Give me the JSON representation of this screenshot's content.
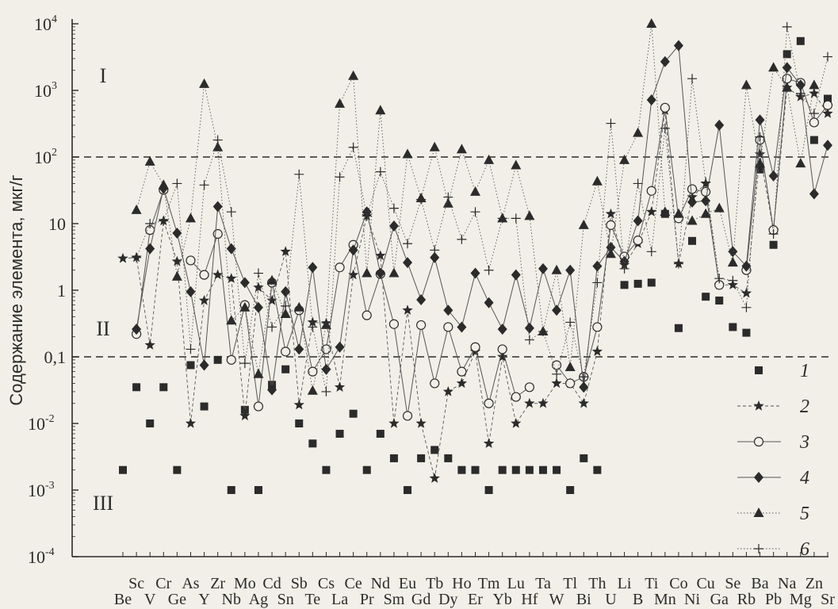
{
  "chart_data": {
    "type": "line",
    "ylabel": "Содержание элемента, мкг/г",
    "yscale": "log",
    "ylim": [
      0.0001,
      10000
    ],
    "yticks": [
      {
        "value": 10000,
        "base": "10",
        "exp": "4"
      },
      {
        "value": 1000,
        "base": "10",
        "exp": "3"
      },
      {
        "value": 100,
        "base": "10",
        "exp": "2"
      },
      {
        "value": 10,
        "base": "10",
        "exp": ""
      },
      {
        "value": 1,
        "base": "1",
        "exp": ""
      },
      {
        "value": 0.1,
        "base": "0,1",
        "exp": ""
      },
      {
        "value": 0.01,
        "base": "10",
        "exp": "-2"
      },
      {
        "value": 0.001,
        "base": "10",
        "exp": "-3"
      },
      {
        "value": 0.0001,
        "base": "10",
        "exp": "-4"
      }
    ],
    "categories": [
      "Be",
      "Sc",
      "V",
      "Cr",
      "Ge",
      "As",
      "Y",
      "Zr",
      "Nb",
      "Mo",
      "Ag",
      "Cd",
      "Sn",
      "Sb",
      "Te",
      "Cs",
      "La",
      "Ce",
      "Pr",
      "Nd",
      "Sm",
      "Eu",
      "Gd",
      "Tb",
      "Dy",
      "Ho",
      "Er",
      "Tm",
      "Yb",
      "Lu",
      "Hf",
      "Ta",
      "W",
      "Tl",
      "Bi",
      "Th",
      "U",
      "Li",
      "B",
      "Ti",
      "Mn",
      "Co",
      "Ni",
      "Cu",
      "Ga",
      "Se",
      "Rb",
      "Ba",
      "Pb",
      "Na",
      "Mg",
      "Zn",
      "Sr"
    ],
    "reference_lines": [
      100,
      0.1
    ],
    "zones": [
      "I",
      "II",
      "III"
    ],
    "series": [
      {
        "name": "1",
        "marker": "square",
        "line": "none",
        "values": [
          0.002,
          0.035,
          0.01,
          0.035,
          0.002,
          0.075,
          0.018,
          0.09,
          0.001,
          0.016,
          0.001,
          0.038,
          0.065,
          0.01,
          0.005,
          0.002,
          0.007,
          0.014,
          0.002,
          0.007,
          0.003,
          0.001,
          0.003,
          0.004,
          0.003,
          0.002,
          0.002,
          0.001,
          0.002,
          0.002,
          0.002,
          0.002,
          0.002,
          0.001,
          0.003,
          0.002,
          null,
          1.2,
          1.25,
          1.3,
          14,
          0.27,
          5.5,
          0.8,
          0.7,
          0.28,
          0.23,
          65,
          4.8,
          3500,
          5500,
          180,
          750
        ]
      },
      {
        "name": "2",
        "marker": "star",
        "line": "dashed",
        "values": [
          3,
          3.1,
          0.15,
          11,
          2.7,
          0.01,
          0.7,
          1.7,
          1.5,
          0.013,
          1.1,
          0.7,
          3.8,
          0.019,
          0.33,
          0.32,
          0.035,
          1.7,
          13,
          3.3,
          0.01,
          0.5,
          0.01,
          0.0015,
          0.03,
          0.04,
          0.12,
          0.005,
          0.1,
          0.01,
          0.02,
          0.02,
          0.04,
          0.04,
          0.02,
          0.12,
          14,
          2.4,
          5,
          15,
          500,
          2.5,
          25,
          40,
          1.2,
          1.2,
          0.9,
          110,
          8,
          1100,
          800,
          900,
          450
        ]
      },
      {
        "name": "3",
        "marker": "circle",
        "line": "solid",
        "values": [
          null,
          0.22,
          8,
          32,
          null,
          2.8,
          1.7,
          7,
          0.09,
          0.6,
          0.018,
          1.3,
          0.12,
          0.5,
          0.06,
          0.13,
          2.2,
          4.8,
          0.42,
          1.75,
          0.31,
          0.013,
          0.3,
          0.04,
          0.28,
          0.06,
          0.14,
          0.02,
          0.13,
          0.025,
          0.035,
          null,
          0.075,
          0.04,
          0.05,
          0.28,
          9.5,
          3.2,
          5.6,
          31,
          550,
          12,
          33,
          30,
          1.2,
          null,
          2,
          180,
          8,
          1500,
          1300,
          330,
          600
        ]
      },
      {
        "name": "4",
        "marker": "diamond",
        "line": "solid",
        "values": [
          null,
          0.26,
          4.2,
          34,
          7.2,
          0.95,
          0.075,
          18,
          4.2,
          1.3,
          0.55,
          0.032,
          0.95,
          0.13,
          2.2,
          0.065,
          0.14,
          4,
          15,
          1.8,
          9.2,
          2.6,
          0.72,
          3.1,
          0.5,
          0.28,
          1.8,
          0.65,
          0.26,
          1.7,
          0.27,
          2.1,
          0.5,
          2,
          0.035,
          2.3,
          4.4,
          2.7,
          11,
          720,
          2700,
          4700,
          21,
          22,
          300,
          3.8,
          2.3,
          360,
          52,
          2200,
          1200,
          28,
          150
        ]
      },
      {
        "name": "5",
        "marker": "triangle",
        "line": "dotted",
        "values": [
          null,
          16,
          85,
          38,
          1.6,
          12,
          1250,
          140,
          0.35,
          0.55,
          0.055,
          1.4,
          0.44,
          0.55,
          0.031,
          0.3,
          630,
          1650,
          1.8,
          500,
          1.8,
          110,
          24,
          140,
          20,
          130,
          30,
          90,
          12,
          75,
          13,
          0.24,
          2,
          0.07,
          9.5,
          43,
          3.5,
          90,
          230,
          10000,
          15,
          14,
          11,
          14,
          17,
          2.6,
          1200,
          80,
          2200,
          1100,
          80,
          1200,
          null
        ]
      },
      {
        "name": "6",
        "marker": "plus",
        "line": "dotted",
        "values": [
          null,
          3.1,
          10,
          11,
          40,
          0.13,
          38,
          180,
          15,
          0.08,
          1.8,
          0.28,
          0.58,
          55,
          0.28,
          0.03,
          50,
          140,
          13,
          60,
          17,
          5,
          23,
          4,
          25,
          5.8,
          15,
          2,
          12,
          12,
          0.18,
          0.24,
          0.055,
          0.33,
          0.05,
          1.3,
          320,
          2.1,
          40,
          3.8,
          270,
          2.5,
          1500,
          42,
          1.5,
          1.4,
          0.55,
          200,
          7,
          9000,
          900,
          450,
          3200
        ]
      }
    ]
  }
}
